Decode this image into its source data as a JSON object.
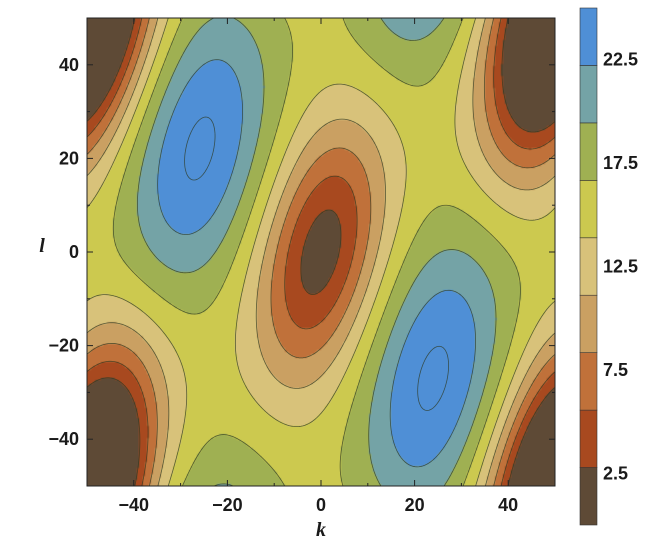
{
  "chart_data": {
    "type": "contour",
    "function_form": "levels of a periodic field over k and l",
    "x": {
      "label": "k",
      "range": [
        -50,
        50
      ],
      "ticks": [
        -40,
        -20,
        0,
        20,
        40
      ]
    },
    "y": {
      "label": "l",
      "range": [
        -50,
        50
      ],
      "ticks": [
        -40,
        -20,
        0,
        20,
        40
      ]
    },
    "contour_levels": [
      2.5,
      5,
      7.5,
      10,
      12.5,
      15,
      17.5,
      20,
      22.5
    ],
    "value_range": [
      0,
      25
    ],
    "legend": {
      "placement": "right",
      "tick_labels": [
        "2.5",
        "7.5",
        "12.5",
        "17.5",
        "22.5"
      ],
      "tick_values": [
        2.5,
        7.5,
        12.5,
        17.5,
        22.5
      ]
    },
    "band_colors": [
      "#5e4a36",
      "#a8491f",
      "#c0713a",
      "#caa062",
      "#d8c27a",
      "#ccc94f",
      "#9fb052",
      "#74a3a6",
      "#4f8fd6"
    ],
    "extrema": [
      {
        "kind": "min",
        "k": 0,
        "l": 0,
        "value": 1.0
      },
      {
        "kind": "min",
        "k": 48,
        "l": 45,
        "value": 1.5
      },
      {
        "kind": "min",
        "k": -48,
        "l": -46,
        "value": 1.5
      },
      {
        "kind": "max",
        "k": -26,
        "l": 22,
        "value": 23.0
      },
      {
        "kind": "max",
        "k": 24,
        "l": -27,
        "value": 23.0
      }
    ]
  }
}
